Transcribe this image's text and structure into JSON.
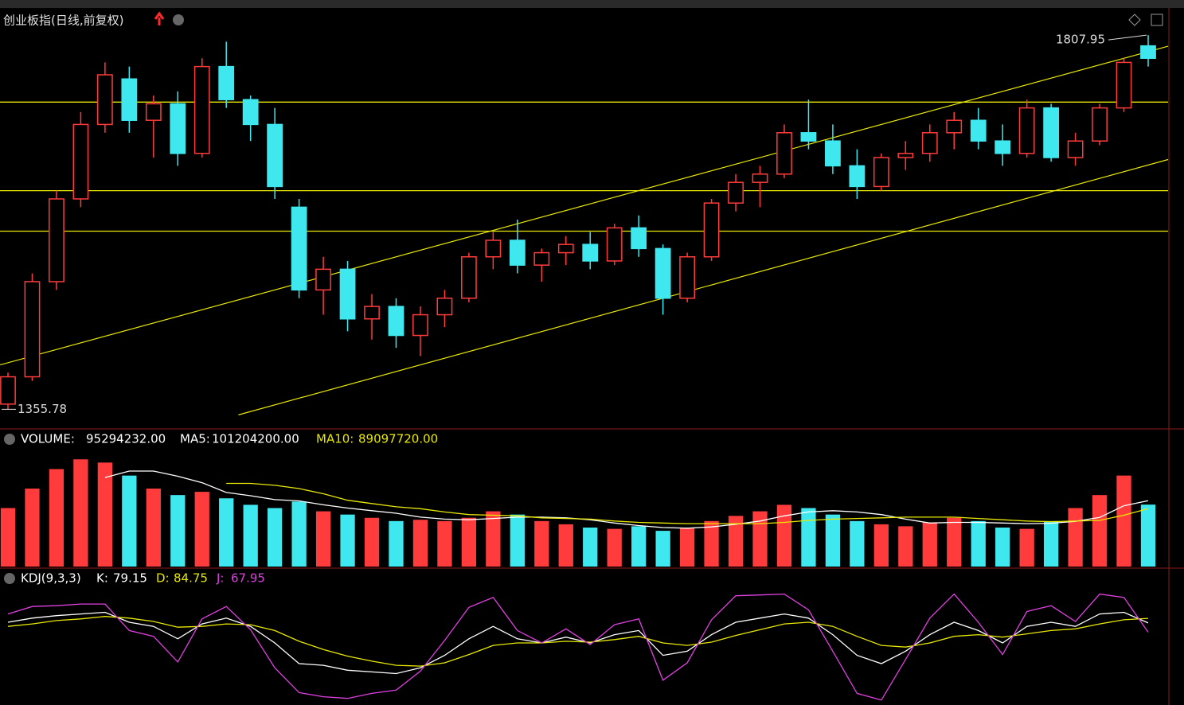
{
  "chart_data": {
    "type": "candlestick",
    "title": "创业板指(日线,前复权)",
    "up_color": "#ff3b3b",
    "down_color": "#3ee8ee",
    "level_color": "#e8e800",
    "ylim": [
      1333,
      1836
    ],
    "high_label": {
      "index": 47,
      "value": 1807.95
    },
    "low_label": {
      "index": 0,
      "value": 1355.78
    },
    "candles": [
      [
        1362,
        1400,
        1356,
        1395
      ],
      [
        1395,
        1520,
        1390,
        1510
      ],
      [
        1510,
        1620,
        1500,
        1610
      ],
      [
        1610,
        1715,
        1600,
        1700
      ],
      [
        1700,
        1775,
        1690,
        1760
      ],
      [
        1755,
        1770,
        1690,
        1705
      ],
      [
        1705,
        1735,
        1660,
        1725
      ],
      [
        1725,
        1740,
        1650,
        1665
      ],
      [
        1665,
        1780,
        1660,
        1770
      ],
      [
        1770,
        1800,
        1720,
        1730
      ],
      [
        1730,
        1735,
        1680,
        1700
      ],
      [
        1700,
        1720,
        1610,
        1625
      ],
      [
        1600,
        1610,
        1490,
        1500
      ],
      [
        1500,
        1540,
        1470,
        1525
      ],
      [
        1525,
        1535,
        1450,
        1465
      ],
      [
        1465,
        1495,
        1440,
        1480
      ],
      [
        1480,
        1490,
        1430,
        1445
      ],
      [
        1445,
        1480,
        1420,
        1470
      ],
      [
        1470,
        1500,
        1455,
        1490
      ],
      [
        1490,
        1545,
        1485,
        1540
      ],
      [
        1540,
        1570,
        1525,
        1560
      ],
      [
        1560,
        1585,
        1520,
        1530
      ],
      [
        1530,
        1550,
        1510,
        1545
      ],
      [
        1545,
        1565,
        1530,
        1555
      ],
      [
        1555,
        1570,
        1525,
        1535
      ],
      [
        1535,
        1580,
        1530,
        1575
      ],
      [
        1575,
        1590,
        1540,
        1550
      ],
      [
        1550,
        1555,
        1470,
        1490
      ],
      [
        1490,
        1545,
        1485,
        1540
      ],
      [
        1540,
        1610,
        1535,
        1605
      ],
      [
        1605,
        1640,
        1595,
        1630
      ],
      [
        1630,
        1650,
        1600,
        1640
      ],
      [
        1640,
        1700,
        1635,
        1690
      ],
      [
        1690,
        1730,
        1670,
        1680
      ],
      [
        1680,
        1700,
        1640,
        1650
      ],
      [
        1650,
        1670,
        1610,
        1625
      ],
      [
        1625,
        1665,
        1620,
        1660
      ],
      [
        1660,
        1680,
        1645,
        1665
      ],
      [
        1665,
        1700,
        1655,
        1690
      ],
      [
        1690,
        1715,
        1670,
        1705
      ],
      [
        1705,
        1720,
        1670,
        1680
      ],
      [
        1680,
        1700,
        1650,
        1665
      ],
      [
        1665,
        1730,
        1660,
        1720
      ],
      [
        1720,
        1725,
        1655,
        1660
      ],
      [
        1660,
        1690,
        1650,
        1680
      ],
      [
        1680,
        1725,
        1675,
        1720
      ],
      [
        1720,
        1780,
        1715,
        1775
      ],
      [
        1795,
        1807.95,
        1770,
        1780
      ]
    ],
    "levels": [
      1727,
      1620,
      1571
    ],
    "trend_lines": [
      {
        "start": [
          0,
          1412
        ],
        "end": [
          47,
          1788
        ]
      },
      {
        "start": [
          9.5,
          1349
        ],
        "end": [
          47,
          1651
        ]
      }
    ],
    "volume": {
      "ylim": [
        0,
        180000000
      ],
      "readouts": [
        {
          "name": "VOLUME:",
          "value": {
            "value": 95294232,
            "label": "95294232.00"
          },
          "color": "#ffffff"
        },
        {
          "name": "MA5:",
          "value": {
            "value": 101204200,
            "label": "101204200.00"
          },
          "color": "#ffffff"
        },
        {
          "name": "MA10:",
          "value": {
            "value": 89097720,
            "label": "89097720.00"
          },
          "color": "#e8e800"
        }
      ],
      "values": [
        90000000,
        120000000,
        150000000,
        165000000,
        160000000,
        140000000,
        120000000,
        110000000,
        115000000,
        105000000,
        95000000,
        90000000,
        100000000,
        85000000,
        80000000,
        75000000,
        70000000,
        72000000,
        70000000,
        75000000,
        85000000,
        80000000,
        70000000,
        65000000,
        60000000,
        58000000,
        62000000,
        55000000,
        60000000,
        70000000,
        78000000,
        85000000,
        95000000,
        90000000,
        80000000,
        70000000,
        65000000,
        62000000,
        68000000,
        75000000,
        70000000,
        60000000,
        58000000,
        70000000,
        90000000,
        110000000,
        140000000,
        95294232
      ],
      "series": [
        {
          "name": "MA5",
          "color": "#ffffff",
          "values": [
            null,
            null,
            null,
            null,
            137000000,
            147000000,
            147000000,
            139000000,
            129000000,
            114000000,
            109000000,
            103000000,
            101000000,
            95000000,
            90000000,
            86000000,
            82000000,
            76000000,
            73000000,
            72000000,
            74000000,
            76000000,
            76000000,
            75000000,
            72000000,
            67000000,
            63000000,
            60000000,
            59000000,
            61000000,
            65000000,
            70000000,
            78000000,
            84000000,
            86000000,
            84000000,
            80000000,
            73000000,
            67000000,
            68000000,
            68000000,
            67000000,
            66000000,
            66600000,
            69600000,
            75600000,
            93600000,
            101204200
          ]
        },
        {
          "name": "MA10",
          "color": "#e8e800",
          "values": [
            null,
            null,
            null,
            null,
            null,
            null,
            null,
            null,
            null,
            128000000,
            128000000,
            125000000,
            120000000,
            112000000,
            102000000,
            97000000,
            92000000,
            89000000,
            84000000,
            80000000,
            79000000,
            78000000,
            75000000,
            74000000,
            73000000,
            70000000,
            68000000,
            67000000,
            66000000,
            66000000,
            66000000,
            66000000,
            68000000,
            71000000,
            73000000,
            74000000,
            75000000,
            76000000,
            76000000,
            76000000,
            74000000,
            72000000,
            70000000,
            69000000,
            70000000,
            71000000,
            79000000,
            89097720
          ]
        }
      ]
    },
    "kdj": {
      "title": "KDJ(9,3,3)",
      "ylim": [
        -20,
        130
      ],
      "series": [
        {
          "name": "K:",
          "color": "#ffffff",
          "values": [
            80,
            85,
            88,
            90,
            92,
            80,
            75,
            60,
            78,
            85,
            75,
            55,
            30,
            28,
            22,
            20,
            18,
            25,
            40,
            60,
            75,
            60,
            55,
            62,
            55,
            65,
            70,
            40,
            45,
            65,
            80,
            85,
            90,
            85,
            65,
            40,
            30,
            45,
            65,
            80,
            70,
            55,
            75,
            80,
            75,
            90,
            92,
            79.15
          ]
        },
        {
          "name": "D:",
          "color": "#e8e800",
          "values": [
            75,
            78,
            82,
            84,
            87,
            85,
            81,
            74,
            75,
            78,
            77,
            70,
            57,
            47,
            39,
            33,
            28,
            27,
            31,
            41,
            52,
            55,
            55,
            57,
            56,
            59,
            63,
            55,
            52,
            56,
            64,
            71,
            78,
            80,
            75,
            63,
            52,
            50,
            55,
            63,
            65,
            62,
            66,
            70,
            72,
            78,
            83,
            84.75
          ]
        },
        {
          "name": "J:",
          "color": "#e040e0",
          "values": [
            90,
            99,
            100,
            102,
            102,
            70,
            63,
            32,
            84,
            99,
            71,
            25,
            -5,
            -10,
            -12,
            -6,
            -2,
            21,
            58,
            98,
            110,
            70,
            55,
            72,
            53,
            77,
            84,
            10,
            31,
            83,
            112,
            113,
            114,
            95,
            45,
            -6,
            -14,
            35,
            85,
            114,
            80,
            41,
            93,
            100,
            81,
            114,
            110,
            67.95
          ]
        }
      ]
    }
  }
}
